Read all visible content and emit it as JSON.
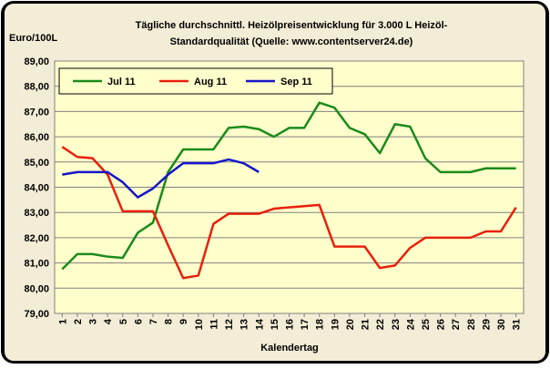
{
  "chart_data": {
    "type": "line",
    "title": [
      "Tägliche durchschnittl. Heizölpreisentwicklung für 3.000 L Heizöl-",
      "Standardqualität (Quelle: www.contentserver24.de)"
    ],
    "y_label": "Euro/100L",
    "x_label": "Kalendertag",
    "categories": [
      "1",
      "2",
      "3",
      "4",
      "5",
      "6",
      "7",
      "8",
      "9",
      "10",
      "11",
      "12",
      "13",
      "14",
      "15",
      "16",
      "17",
      "18",
      "19",
      "20",
      "21",
      "22",
      "23",
      "24",
      "25",
      "26",
      "27",
      "28",
      "29",
      "30",
      "31"
    ],
    "series": [
      {
        "name": "Jul 11",
        "color": "#1a8a1a",
        "values": [
          80.75,
          81.35,
          81.35,
          81.25,
          81.2,
          82.2,
          82.6,
          84.6,
          85.5,
          85.5,
          85.5,
          86.35,
          86.4,
          86.3,
          86.0,
          86.35,
          86.35,
          87.35,
          87.15,
          86.35,
          86.1,
          85.35,
          86.5,
          86.4,
          85.15,
          84.6,
          84.6,
          84.6,
          84.75,
          84.75,
          84.75
        ]
      },
      {
        "name": "Aug 11",
        "color": "#e8200c",
        "values": [
          85.6,
          85.2,
          85.15,
          84.5,
          83.05,
          83.05,
          83.05,
          81.7,
          80.4,
          80.5,
          82.55,
          82.95,
          82.95,
          82.95,
          83.15,
          83.2,
          83.25,
          83.3,
          81.65,
          81.65,
          81.65,
          80.8,
          80.9,
          81.6,
          82.0,
          82.0,
          82.0,
          82.0,
          82.25,
          82.25,
          83.2
        ]
      },
      {
        "name": "Sep 11",
        "color": "#1515c8",
        "values": [
          84.5,
          84.6,
          84.6,
          84.6,
          84.2,
          83.6,
          83.95,
          84.5,
          84.95,
          84.95,
          84.95,
          85.1,
          84.95,
          84.6,
          null,
          null,
          null,
          null,
          null,
          null,
          null,
          null,
          null,
          null,
          null,
          null,
          null,
          null,
          null,
          null,
          null
        ]
      }
    ],
    "ylim": [
      79,
      89
    ],
    "yticks": [
      {
        "value": 79,
        "label": "79,00"
      },
      {
        "value": 80,
        "label": "80,00"
      },
      {
        "value": 81,
        "label": "81,00"
      },
      {
        "value": 82,
        "label": "82,00"
      },
      {
        "value": 83,
        "label": "83,00"
      },
      {
        "value": 84,
        "label": "84,00"
      },
      {
        "value": 85,
        "label": "85,00"
      },
      {
        "value": 86,
        "label": "86,00"
      },
      {
        "value": 87,
        "label": "87,00"
      },
      {
        "value": 88,
        "label": "88,00"
      },
      {
        "value": 89,
        "label": "89,00"
      }
    ],
    "grid": true
  }
}
